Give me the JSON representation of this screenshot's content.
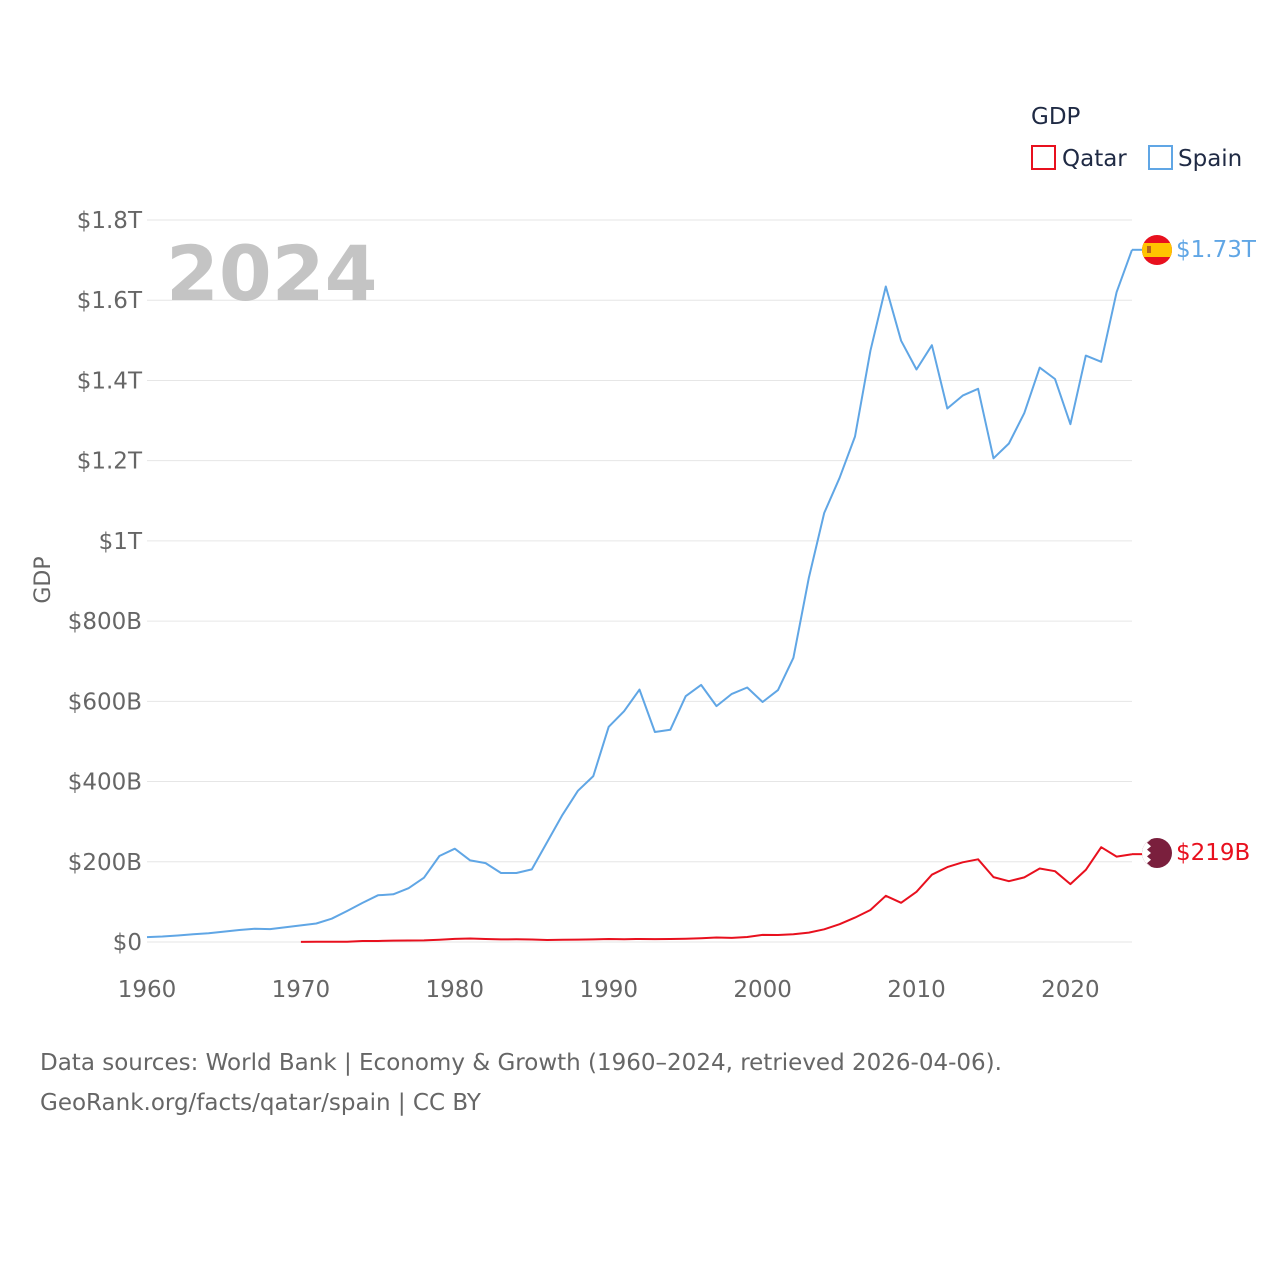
{
  "chart_data": {
    "type": "line",
    "year_label": "2024",
    "ylabel": "GDP",
    "legend_title": "GDP",
    "ylim": [
      0,
      1800000000000
    ],
    "xlim": [
      1960,
      2024
    ],
    "x_ticks": [
      1960,
      1970,
      1980,
      1990,
      2000,
      2010,
      2020
    ],
    "x_tick_labels": [
      "1960",
      "1970",
      "1980",
      "1990",
      "2000",
      "2010",
      "2020"
    ],
    "y_ticks": [
      0,
      200000000000,
      400000000000,
      600000000000,
      800000000000,
      1000000000000,
      1200000000000,
      1400000000000,
      1600000000000,
      1800000000000
    ],
    "y_tick_labels": [
      "$0",
      "$200B",
      "$400B",
      "$600B",
      "$800B",
      "$1T",
      "$1.2T",
      "$1.4T",
      "$1.6T",
      "$1.8T"
    ],
    "series": [
      {
        "name": "Qatar",
        "color": "#e8101e",
        "end_label": "$219B",
        "flag": "qatar-flag",
        "x": [
          1970,
          1971,
          1972,
          1973,
          1974,
          1975,
          1976,
          1977,
          1978,
          1979,
          1980,
          1981,
          1982,
          1983,
          1984,
          1985,
          1986,
          1987,
          1988,
          1989,
          1990,
          1991,
          1992,
          1993,
          1994,
          1995,
          1996,
          1997,
          1998,
          1999,
          2000,
          2001,
          2002,
          2003,
          2004,
          2005,
          2006,
          2007,
          2008,
          2009,
          2010,
          2011,
          2012,
          2013,
          2014,
          2015,
          2016,
          2017,
          2018,
          2019,
          2020,
          2021,
          2022,
          2023,
          2024
        ],
        "values": [
          0.3,
          0.4,
          0.5,
          0.6,
          2.4,
          2.5,
          3.6,
          3.8,
          4.1,
          5.6,
          7.8,
          8.7,
          7.6,
          6.5,
          6.8,
          6.2,
          5.0,
          5.4,
          6.0,
          6.5,
          7.4,
          7.0,
          7.6,
          7.2,
          7.4,
          8.1,
          9.1,
          11.3,
          10.3,
          12.4,
          17.8,
          17.5,
          19.4,
          23.5,
          31.7,
          44.5,
          60.9,
          79.7,
          115.3,
          97.8,
          125.1,
          167.8,
          186.8,
          198.7,
          206.2,
          161.7,
          151.7,
          161.1,
          183.3,
          176.4,
          144.4,
          179.7,
          236.3,
          213.0,
          219.0
        ]
      },
      {
        "name": "Spain",
        "color": "#60a6e5",
        "end_label": "$1.73T",
        "flag": "spain-flag",
        "x": [
          1960,
          1961,
          1962,
          1963,
          1964,
          1965,
          1966,
          1967,
          1968,
          1969,
          1970,
          1971,
          1972,
          1973,
          1974,
          1975,
          1976,
          1977,
          1978,
          1979,
          1980,
          1981,
          1982,
          1983,
          1984,
          1985,
          1986,
          1987,
          1988,
          1989,
          1990,
          1991,
          1992,
          1993,
          1994,
          1995,
          1996,
          1997,
          1998,
          1999,
          2000,
          2001,
          2002,
          2003,
          2004,
          2005,
          2006,
          2007,
          2008,
          2009,
          2010,
          2011,
          2012,
          2013,
          2014,
          2015,
          2016,
          2017,
          2018,
          2019,
          2020,
          2021,
          2022,
          2023,
          2024
        ],
        "values": [
          12.1,
          13.8,
          16.1,
          19.4,
          21.8,
          25.9,
          29.8,
          33.0,
          32.1,
          37.0,
          41.4,
          46.2,
          58.1,
          77.3,
          97.5,
          116.5,
          119.0,
          134.2,
          160.2,
          214.3,
          232.7,
          203.5,
          196.8,
          171.9,
          172.1,
          181.1,
          249.2,
          317.1,
          376.9,
          413.7,
          536.5,
          575.5,
          629.3,
          523.6,
          529.1,
          612.9,
          640.9,
          588.1,
          618.6,
          634.6,
          598.4,
          627.9,
          708.5,
          907.5,
          1069.6,
          1157.3,
          1260.2,
          1474.0,
          1634.2,
          1499.1,
          1427.2,
          1487.9,
          1330.1,
          1362.2,
          1379.1,
          1206.0,
          1242.9,
          1318.6,
          1431.9,
          1403.5,
          1290.8,
          1461.9,
          1446.5,
          1620.1,
          1725.7
        ]
      }
    ]
  },
  "footer": {
    "line1": "Data sources: World Bank | Economy & Growth (1960–2024, retrieved 2026-04-06).",
    "line2": "GeoRank.org/facts/qatar/spain | CC BY"
  }
}
